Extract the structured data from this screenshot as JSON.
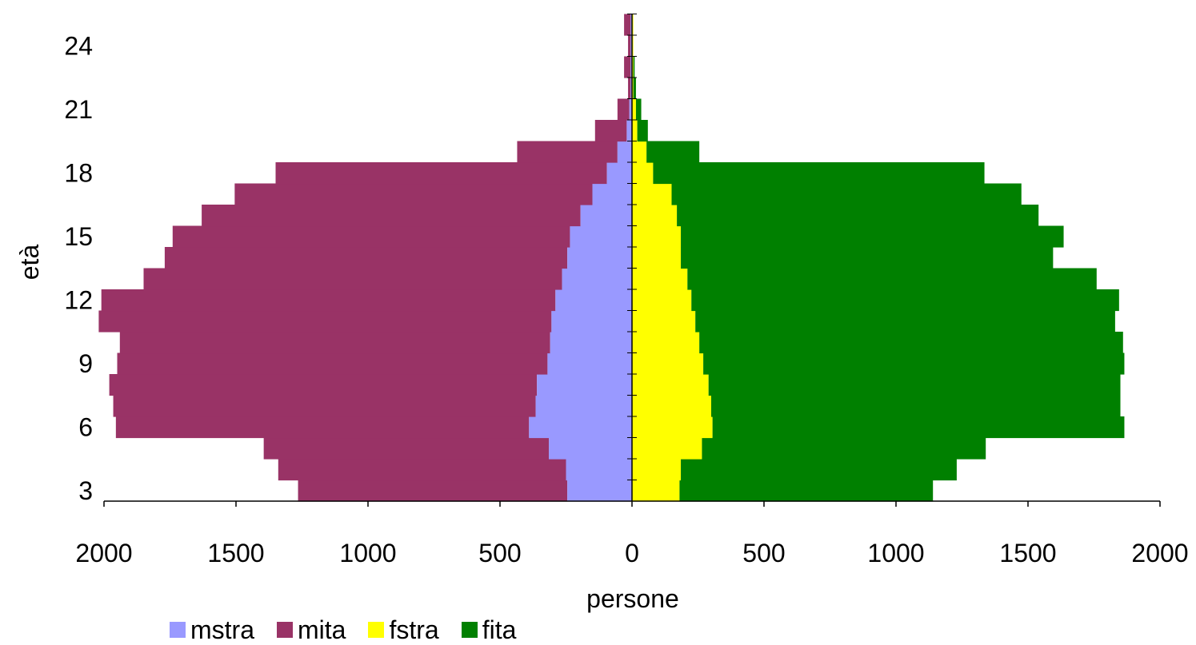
{
  "chart_data": {
    "type": "bar",
    "orientation": "horizontal-population-pyramid",
    "title": "",
    "xlabel": "persone",
    "ylabel": "età",
    "xlim": [
      -2000,
      2000
    ],
    "x_ticks": [
      -2000,
      -1500,
      -1000,
      -500,
      0,
      500,
      1000,
      1500,
      2000
    ],
    "x_tick_labels": [
      "2000",
      "1500",
      "1000",
      "500",
      "0",
      "500",
      "1000",
      "1500",
      "2000"
    ],
    "y_tick_labels": [
      "3",
      "6",
      "9",
      "12",
      "15",
      "18",
      "21",
      "24"
    ],
    "y_tick_values": [
      3,
      6,
      9,
      12,
      15,
      18,
      21,
      24
    ],
    "ages": [
      3,
      4,
      5,
      6,
      7,
      8,
      9,
      10,
      11,
      12,
      13,
      14,
      15,
      16,
      17,
      18,
      19,
      20,
      21,
      22,
      23,
      24,
      25
    ],
    "grid": false,
    "legend_position": "bottom",
    "stacking": "mstra and fstra drawn nearest to the axis, mita and fita extend beyond them (cumulative)",
    "series": [
      {
        "name": "mstra",
        "side": "left",
        "color": "#9999ff",
        "values": [
          245,
          250,
          315,
          390,
          365,
          360,
          320,
          310,
          305,
          290,
          265,
          245,
          235,
          195,
          150,
          95,
          55,
          20,
          10,
          5,
          5,
          5,
          5
        ]
      },
      {
        "name": "mita",
        "side": "left",
        "color": "#993366",
        "values": [
          1020,
          1090,
          1080,
          1565,
          1600,
          1620,
          1630,
          1630,
          1715,
          1720,
          1585,
          1525,
          1505,
          1435,
          1355,
          1255,
          380,
          120,
          45,
          10,
          25,
          10,
          25
        ]
      },
      {
        "name": "fstra",
        "side": "right",
        "color": "#ffff00",
        "values": [
          180,
          185,
          265,
          305,
          300,
          290,
          270,
          255,
          240,
          225,
          210,
          185,
          185,
          170,
          150,
          80,
          55,
          20,
          15,
          5,
          5,
          5,
          5
        ]
      },
      {
        "name": "fita",
        "side": "right",
        "color": "#008000",
        "values": [
          960,
          1045,
          1075,
          1560,
          1550,
          1560,
          1595,
          1605,
          1590,
          1620,
          1550,
          1410,
          1450,
          1370,
          1325,
          1255,
          200,
          40,
          20,
          10,
          5,
          0,
          0
        ]
      }
    ]
  }
}
